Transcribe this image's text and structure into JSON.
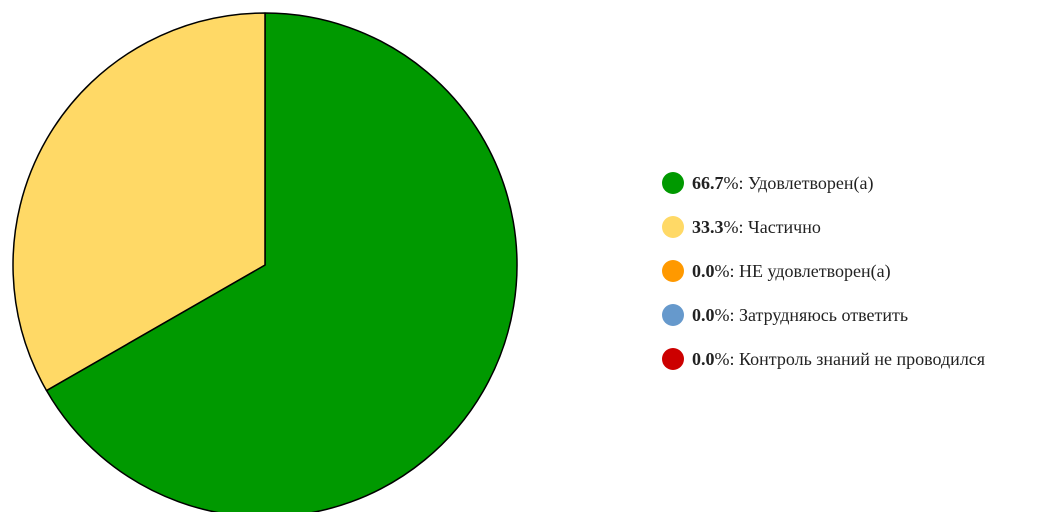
{
  "chart_data": {
    "type": "pie",
    "start_angle_deg": 0,
    "slices": [
      {
        "value": 66.7,
        "label": "Удовлетворен(а)",
        "pct": "66.7",
        "color": "#009900"
      },
      {
        "value": 33.3,
        "label": "Частично",
        "pct": "33.3",
        "color": "#FFD966"
      },
      {
        "value": 0.0,
        "label": "НЕ удовлетворен(а)",
        "pct": "0.0",
        "color": "#FF9900"
      },
      {
        "value": 0.0,
        "label": "Затрудняюсь ответить",
        "pct": "0.0",
        "color": "#6699CC"
      },
      {
        "value": 0.0,
        "label": "Контроль знаний не проводился",
        "pct": "0.0",
        "color": "#CC0000"
      }
    ],
    "legend_position": "right",
    "pct_suffix": "%: "
  }
}
